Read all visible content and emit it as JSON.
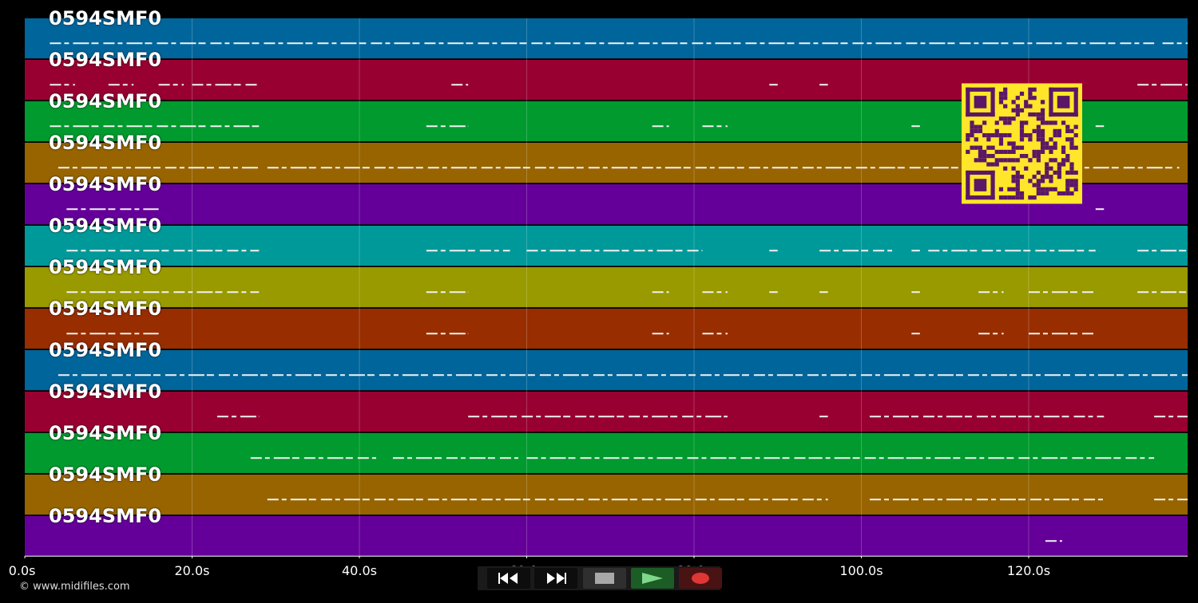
{
  "tracks": [
    {
      "label": "0594SMF0",
      "color": "#00659b"
    },
    {
      "label": "0594SMF0",
      "color": "#980032"
    },
    {
      "label": "0594SMF0",
      "color": "#009a2e"
    },
    {
      "label": "0594SMF0",
      "color": "#976400"
    },
    {
      "label": "0594SMF0",
      "color": "#640099"
    },
    {
      "label": "0594SMF0",
      "color": "#009999"
    },
    {
      "label": "0594SMF0",
      "color": "#999900"
    },
    {
      "label": "0594SMF0",
      "color": "#982d00"
    },
    {
      "label": "0594SMF0",
      "color": "#00659b"
    },
    {
      "label": "0594SMF0",
      "color": "#980032"
    },
    {
      "label": "0594SMF0",
      "color": "#009a2e"
    },
    {
      "label": "0594SMF0",
      "color": "#976400"
    },
    {
      "label": "0594SMF0",
      "color": "#640099"
    }
  ],
  "timeline": {
    "max_seconds": 139,
    "ticks": [
      {
        "seconds": 0,
        "label": "0.0s"
      },
      {
        "seconds": 20,
        "label": "20.0s"
      },
      {
        "seconds": 40,
        "label": "40.0s"
      },
      {
        "seconds": 60,
        "label": "60.0s"
      },
      {
        "seconds": 80,
        "label": "80.0s"
      },
      {
        "seconds": 100,
        "label": "100.0s"
      },
      {
        "seconds": 120,
        "label": "120.0s"
      }
    ]
  },
  "notes": [
    {
      "track": 0,
      "segments": [
        [
          3,
          135
        ],
        [
          136,
          139
        ]
      ]
    },
    {
      "track": 1,
      "segments": [
        [
          3,
          6
        ],
        [
          10,
          13
        ],
        [
          16,
          19
        ],
        [
          20,
          28
        ],
        [
          51,
          53
        ],
        [
          89,
          90
        ],
        [
          95,
          96
        ],
        [
          133,
          137
        ],
        [
          137,
          139
        ]
      ]
    },
    {
      "track": 2,
      "segments": [
        [
          3,
          28
        ],
        [
          48,
          53
        ],
        [
          75,
          77
        ],
        [
          81,
          84
        ],
        [
          106,
          107
        ],
        [
          128,
          129
        ]
      ]
    },
    {
      "track": 3,
      "segments": [
        [
          4,
          28
        ],
        [
          29,
          138
        ]
      ]
    },
    {
      "track": 4,
      "segments": [
        [
          5,
          16
        ],
        [
          128,
          129
        ]
      ]
    },
    {
      "track": 5,
      "segments": [
        [
          5,
          28
        ],
        [
          48,
          58
        ],
        [
          60,
          81
        ],
        [
          89,
          90
        ],
        [
          95,
          104
        ],
        [
          106,
          107
        ],
        [
          108,
          128
        ],
        [
          133,
          139
        ]
      ]
    },
    {
      "track": 6,
      "segments": [
        [
          5,
          28
        ],
        [
          48,
          53
        ],
        [
          75,
          77
        ],
        [
          81,
          84
        ],
        [
          89,
          90
        ],
        [
          95,
          96
        ],
        [
          106,
          107
        ],
        [
          114,
          117
        ],
        [
          120,
          128
        ],
        [
          133,
          139
        ]
      ]
    },
    {
      "track": 7,
      "segments": [
        [
          5,
          16
        ],
        [
          48,
          53
        ],
        [
          75,
          77
        ],
        [
          81,
          84
        ],
        [
          106,
          107
        ],
        [
          114,
          117
        ],
        [
          120,
          128
        ]
      ]
    },
    {
      "track": 8,
      "segments": [
        [
          4,
          139
        ]
      ]
    },
    {
      "track": 9,
      "segments": [
        [
          23,
          28
        ],
        [
          53,
          84
        ],
        [
          95,
          96
        ],
        [
          101,
          119
        ],
        [
          119,
          129
        ],
        [
          135,
          139
        ]
      ]
    },
    {
      "track": 10,
      "segments": [
        [
          27,
          42
        ],
        [
          44,
          59
        ],
        [
          60,
          94
        ],
        [
          94,
          106
        ],
        [
          106,
          135
        ]
      ]
    },
    {
      "track": 11,
      "segments": [
        [
          29,
          96
        ],
        [
          101,
          129
        ],
        [
          135,
          139
        ]
      ]
    },
    {
      "track": 12,
      "segments": [
        [
          122,
          124
        ]
      ]
    }
  ],
  "transport": {
    "rewind_icon": "rewind-icon",
    "fast_forward_icon": "fast-forward-icon",
    "stop_icon": "stop-icon",
    "play_icon": "play-icon",
    "record_icon": "record-icon"
  },
  "footer": {
    "copyright": "© www.midifiles.com"
  }
}
